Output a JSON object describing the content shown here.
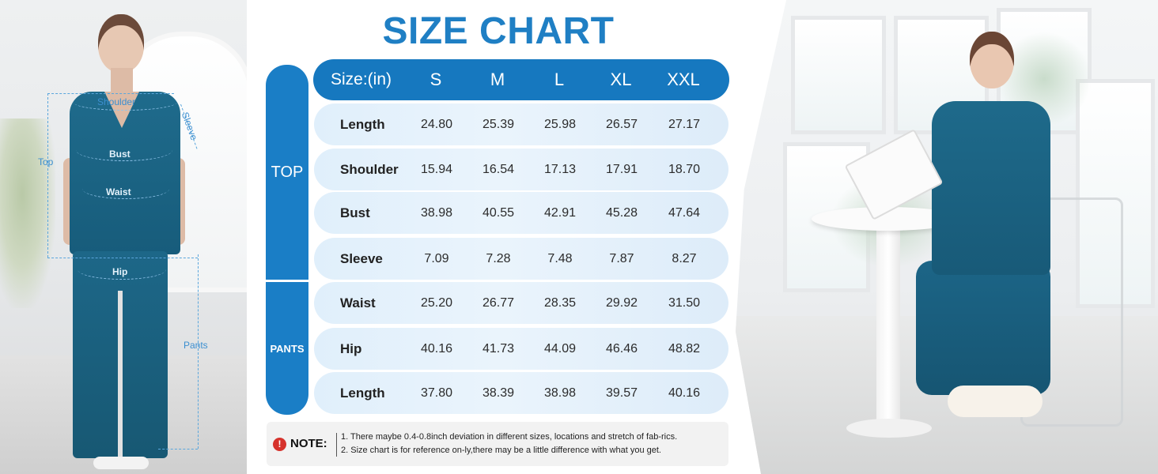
{
  "title": "SIZE CHART",
  "diagram_labels": {
    "shoulder": "Shoulder",
    "sleeve": "Sleeve",
    "bust": "Bust",
    "top": "Top",
    "waist": "Waist",
    "hip": "Hip",
    "pants": "Pants"
  },
  "groups": {
    "top": "TOP",
    "pants": "PANTS"
  },
  "header": [
    "Size:(in)",
    "S",
    "M",
    "L",
    "XL",
    "XXL"
  ],
  "rows": [
    {
      "label": "Length",
      "values": [
        "24.80",
        "25.39",
        "25.98",
        "26.57",
        "27.17"
      ]
    },
    {
      "label": "Shoulder",
      "values": [
        "15.94",
        "16.54",
        "17.13",
        "17.91",
        "18.70"
      ]
    },
    {
      "label": "Bust",
      "values": [
        "38.98",
        "40.55",
        "42.91",
        "45.28",
        "47.64"
      ]
    },
    {
      "label": "Sleeve",
      "values": [
        "7.09",
        "7.28",
        "7.48",
        "7.87",
        "8.27"
      ]
    },
    {
      "label": "Waist",
      "values": [
        "25.20",
        "26.77",
        "28.35",
        "29.92",
        "31.50"
      ]
    },
    {
      "label": "Hip",
      "values": [
        "40.16",
        "41.73",
        "44.09",
        "46.46",
        "48.82"
      ]
    },
    {
      "label": "Length",
      "values": [
        "37.80",
        "38.39",
        "38.98",
        "39.57",
        "40.16"
      ]
    }
  ],
  "note": {
    "icon": "!",
    "label": "NOTE:",
    "lines": [
      "1. There maybe 0.4-0.8inch deviation in different sizes, locations and stretch of fab-rics.",
      "2. Size chart is for reference on-ly,there may be a little difference with what you get."
    ]
  },
  "colors": {
    "accent": "#1678bf",
    "title": "#1f7fc4",
    "row_bg": "#e4f1fb",
    "scrub": "#1d6788"
  }
}
